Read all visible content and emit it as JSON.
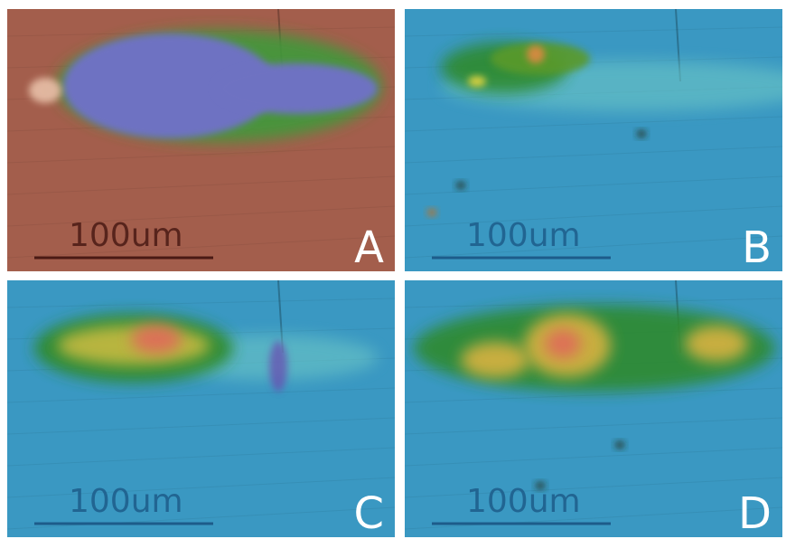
{
  "panels": [
    {
      "label": "A",
      "scale_bar": "100um"
    },
    {
      "label": "B",
      "scale_bar": "100um"
    },
    {
      "label": "C",
      "scale_bar": "100um"
    },
    {
      "label": "D",
      "scale_bar": "100um"
    }
  ]
}
